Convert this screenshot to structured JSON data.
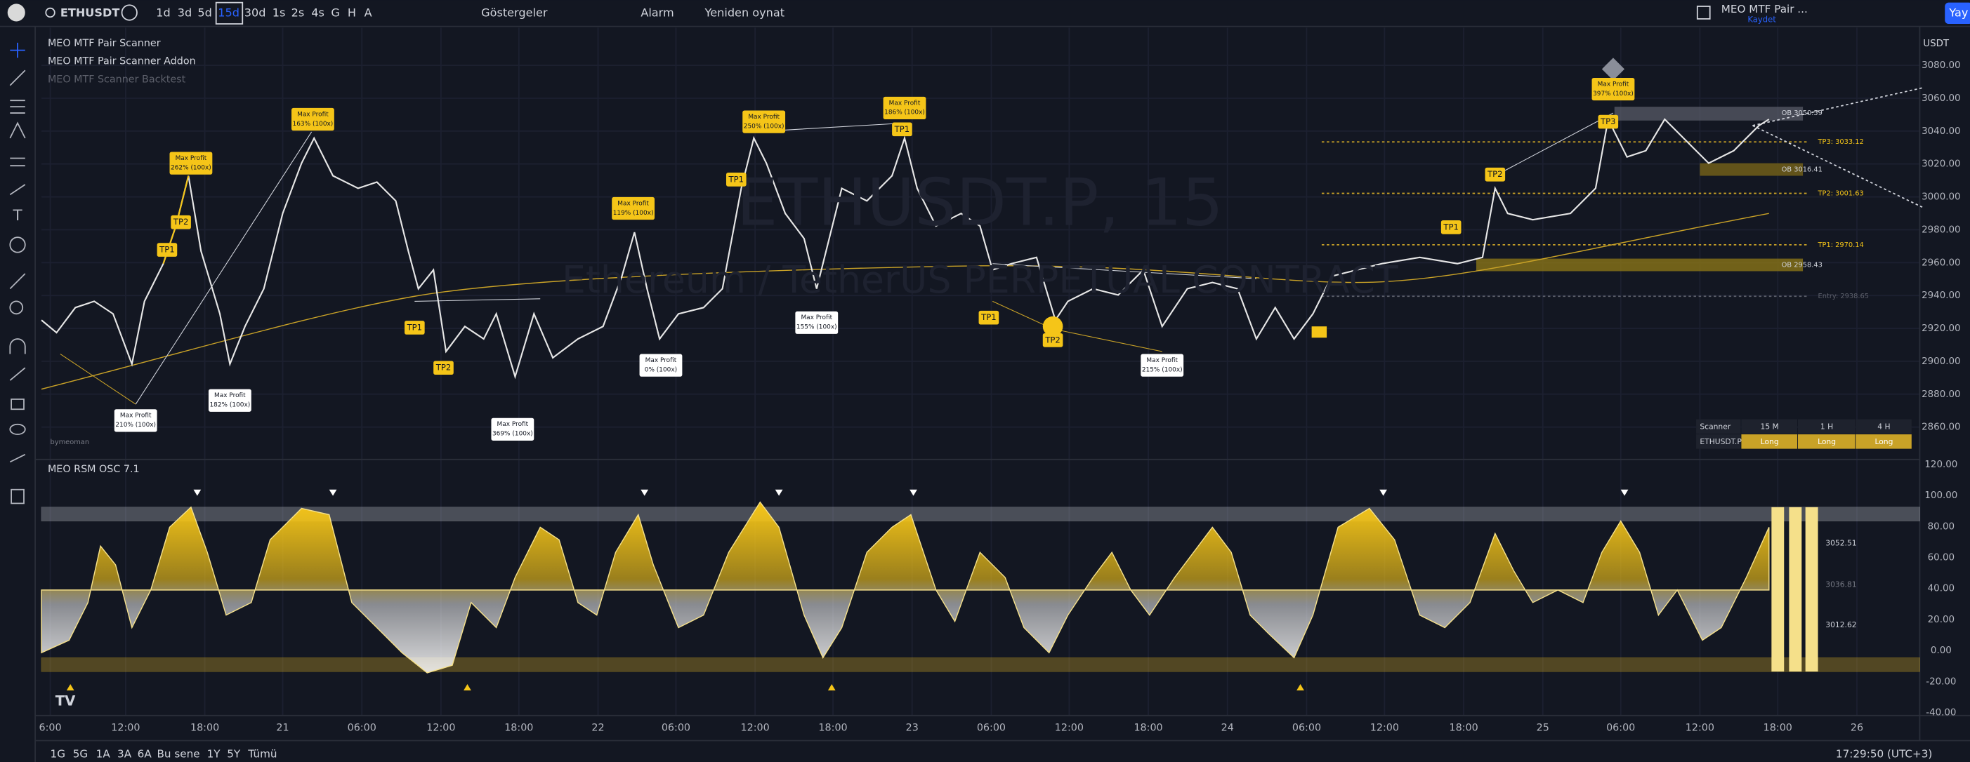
{
  "toolbar": {
    "symbol": "ETHUSDT",
    "intervals": [
      "1d",
      "3d",
      "5d",
      "15d",
      "30d",
      "1s",
      "2s",
      "4s",
      "G",
      "H",
      "A"
    ],
    "indicators": "Göstergeler",
    "alert": "Alarm",
    "replay": "Yeniden oynat",
    "layout_name": "MEO MTF Pair ...",
    "save": "Kaydet",
    "publish": "Yay"
  },
  "legend": {
    "indicators": [
      "MEO MTF Pair Scanner",
      "MEO MTF Pair Scanner Addon",
      "MEO MTF Scanner Backtest"
    ]
  },
  "watermark": {
    "symbol": "ETHUSDT.P, 15",
    "description": "Ethereum / TetherUS PERPETUAL CONTRACT"
  },
  "price_axis": {
    "currency": "USDT",
    "labels": [
      "3080.00",
      "3060.00",
      "3040.00",
      "3020.00",
      "3000.00",
      "2980.00",
      "2960.00",
      "2940.00",
      "2920.00",
      "2900.00",
      "2880.00",
      "2860.00"
    ]
  },
  "signals": {
    "max_profit": [
      {
        "title": "Max Profit",
        "detail": "262% (100x)"
      },
      {
        "title": "Max Profit",
        "detail": "163% (100x)"
      },
      {
        "title": "Max Profit",
        "detail": "119% (100x)"
      },
      {
        "title": "Max Profit",
        "detail": "250% (100x)"
      },
      {
        "title": "Max Profit",
        "detail": "186% (100x)"
      },
      {
        "title": "Max Profit",
        "detail": "397% (100x)"
      },
      {
        "title": "Max Profit",
        "detail": "210% (100x)"
      },
      {
        "title": "Max Profit",
        "detail": "182% (100x)"
      },
      {
        "title": "Max Profit",
        "detail": "369% (100x)"
      },
      {
        "title": "Max Profit",
        "detail": "0% (100x)"
      },
      {
        "title": "Max Profit",
        "detail": "155% (100x)"
      },
      {
        "title": "Max Profit",
        "detail": "215% (100x)"
      }
    ],
    "targets": [
      "TP1",
      "TP2",
      "TP1",
      "TP2",
      "TP1",
      "TP1",
      "TP1",
      "TP2",
      "TP1",
      "TP2",
      "TP3"
    ],
    "levels": [
      "OB 3050.59",
      "TP3: 3033.12",
      "OB 3016.41",
      "TP2: 3001.63",
      "TP1: 2970.14",
      "OB 2958.43",
      "Entry: 2938.65"
    ]
  },
  "scanner_table": {
    "header": [
      "Scanner",
      "15 M",
      "1 H",
      "4 H"
    ],
    "rows": [
      [
        "ETHUSDT.P",
        "Long",
        "Long",
        "Long"
      ]
    ]
  },
  "author": "bymeoman",
  "oscillator": {
    "title": "MEO RSM OSC 7.1",
    "axis_labels": [
      "120.00",
      "100.00",
      "80.00",
      "60.00",
      "40.00",
      "20.00",
      "0.00",
      "-20.00",
      "-40.00"
    ],
    "side_labels": [
      "3052.51",
      "3036.81",
      "3012.62"
    ]
  },
  "time_axis": {
    "labels": [
      "6:00",
      "12:00",
      "18:00",
      "21",
      "06:00",
      "12:00",
      "18:00",
      "22",
      "06:00",
      "12:00",
      "18:00",
      "23",
      "06:00",
      "12:00",
      "18:00",
      "24",
      "06:00",
      "12:00",
      "18:00",
      "25",
      "06:00",
      "12:00",
      "18:00",
      "26"
    ]
  },
  "bottom_bar": {
    "ranges": [
      "1G",
      "5G",
      "1A",
      "3A",
      "6A",
      "Bu sene",
      "1Y",
      "5Y",
      "Tümü"
    ],
    "clock": "17:29:50 (UTC+3)"
  }
}
